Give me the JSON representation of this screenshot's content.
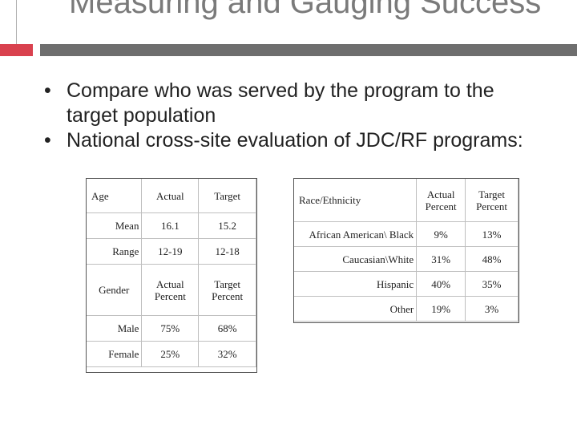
{
  "slide": {
    "title": "Measuring and Gauging Success",
    "bullets": [
      "Compare who was served by the program to the target population",
      "National cross-site evaluation of JDC/RF programs:"
    ]
  },
  "age_table": {
    "headers": [
      "Age",
      "Actual",
      "Target"
    ],
    "rows": [
      {
        "label": "Mean",
        "actual": "16.1",
        "target": "15.2"
      },
      {
        "label": "Range",
        "actual": "12-19",
        "target": "12-18"
      }
    ],
    "gender_headers": [
      "Gender",
      "Actual Percent",
      "Target Percent"
    ],
    "gender_rows": [
      {
        "label": "Male",
        "actual": "75%",
        "target": "68%"
      },
      {
        "label": "Female",
        "actual": "25%",
        "target": "32%"
      }
    ]
  },
  "race_table": {
    "headers": [
      "Race/Ethnicity",
      "Actual Percent",
      "Target Percent"
    ],
    "rows": [
      {
        "label": "African American\\ Black",
        "actual": "9%",
        "target": "13%"
      },
      {
        "label": "Caucasian\\White",
        "actual": "31%",
        "target": "48%"
      },
      {
        "label": "Hispanic",
        "actual": "40%",
        "target": "35%"
      },
      {
        "label": "Other",
        "actual": "19%",
        "target": "3%"
      }
    ]
  },
  "colors": {
    "accent_red": "#d9414e",
    "rule_gray": "#6e6e6e",
    "title_gray": "#7a7a7a"
  }
}
